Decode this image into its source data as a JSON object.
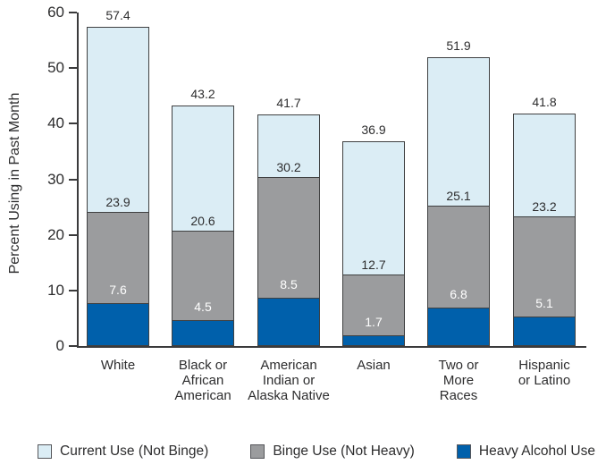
{
  "chart_data": {
    "type": "bar",
    "stacked": true,
    "ylabel": "Percent Using in Past Month",
    "ylim": [
      0,
      60
    ],
    "yticks": [
      0,
      10,
      20,
      30,
      40,
      50,
      60
    ],
    "grid": false,
    "legend_position": "bottom",
    "categories": [
      "White",
      "Black or African American",
      "American Indian or Alaska Native",
      "Asian",
      "Two or More Races",
      "Hispanic or Latino"
    ],
    "category_label_lines": [
      [
        "White"
      ],
      [
        "Black or",
        "African",
        "American"
      ],
      [
        "American",
        "Indian or",
        "Alaska Native"
      ],
      [
        "Asian"
      ],
      [
        "Two or",
        "More",
        "Races"
      ],
      [
        "Hispanic",
        "or Latino"
      ]
    ],
    "series": [
      {
        "name": "Heavy Alcohol Use",
        "color": "#0060AB",
        "segment_values": [
          7.6,
          4.5,
          8.5,
          1.7,
          6.8,
          5.1
        ]
      },
      {
        "name": "Binge Use (Not Heavy)",
        "color": "#9B9C9E",
        "segment_values": [
          16.3,
          16.1,
          21.7,
          11.0,
          18.3,
          18.1
        ]
      },
      {
        "name": "Current Use (Not Binge)",
        "color": "#DBEDF5",
        "segment_values": [
          33.5,
          22.6,
          11.5,
          24.2,
          26.8,
          18.6
        ]
      }
    ],
    "printed_labels": {
      "totals": [
        "57.4",
        "43.2",
        "41.7",
        "36.9",
        "51.9",
        "41.8"
      ],
      "binge_cumulative": [
        "23.9",
        "20.6",
        "30.2",
        "12.7",
        "25.1",
        "23.2"
      ],
      "heavy": [
        "7.6",
        "4.5",
        "8.5",
        "1.7",
        "6.8",
        "5.1"
      ]
    },
    "legend": {
      "items": [
        {
          "label": "Current Use (Not Binge)",
          "color": "#DBEDF5"
        },
        {
          "label": "Binge Use (Not Heavy)",
          "color": "#9B9C9E"
        },
        {
          "label": "Heavy Alcohol Use",
          "color": "#0060AB"
        }
      ]
    },
    "colors": {
      "axis": "#3A3A3B",
      "bar_border": "#3F4041",
      "text": "#2D2D2E",
      "heavy_value_label": "#FFFFFF"
    }
  }
}
